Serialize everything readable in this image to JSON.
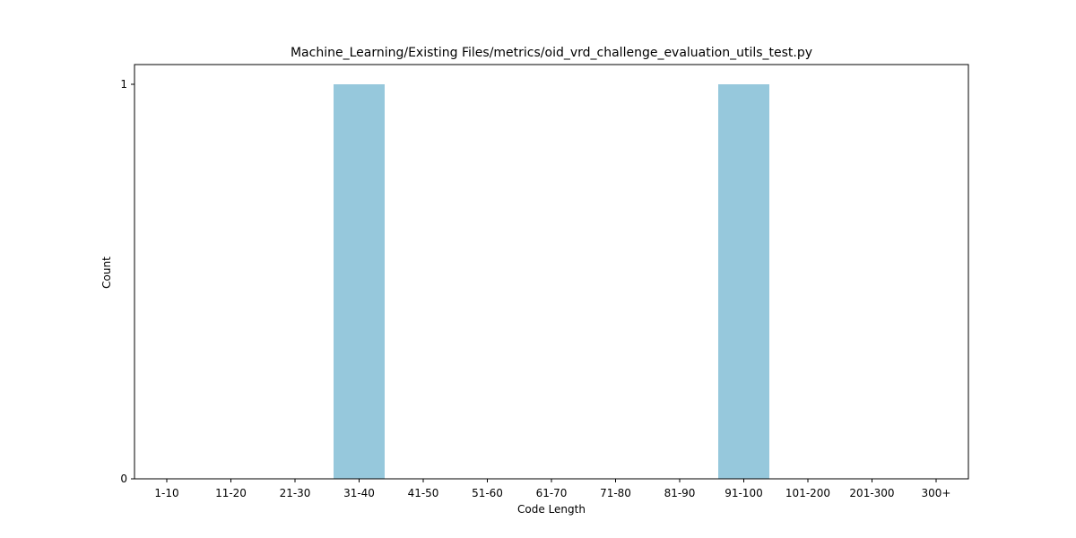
{
  "chart_data": {
    "type": "bar",
    "title": "Machine_Learning/Existing Files/metrics/oid_vrd_challenge_evaluation_utils_test.py",
    "xlabel": "Code Length",
    "ylabel": "Count",
    "categories": [
      "1-10",
      "11-20",
      "21-30",
      "31-40",
      "41-50",
      "51-60",
      "61-70",
      "71-80",
      "81-90",
      "91-100",
      "101-200",
      "201-300",
      "300+"
    ],
    "values": [
      0,
      0,
      0,
      1,
      0,
      0,
      0,
      0,
      0,
      1,
      0,
      0,
      0
    ],
    "ylim": [
      0,
      1
    ],
    "yticks": [
      0,
      1
    ],
    "grid": false,
    "bar_color": "#96c8dc"
  }
}
